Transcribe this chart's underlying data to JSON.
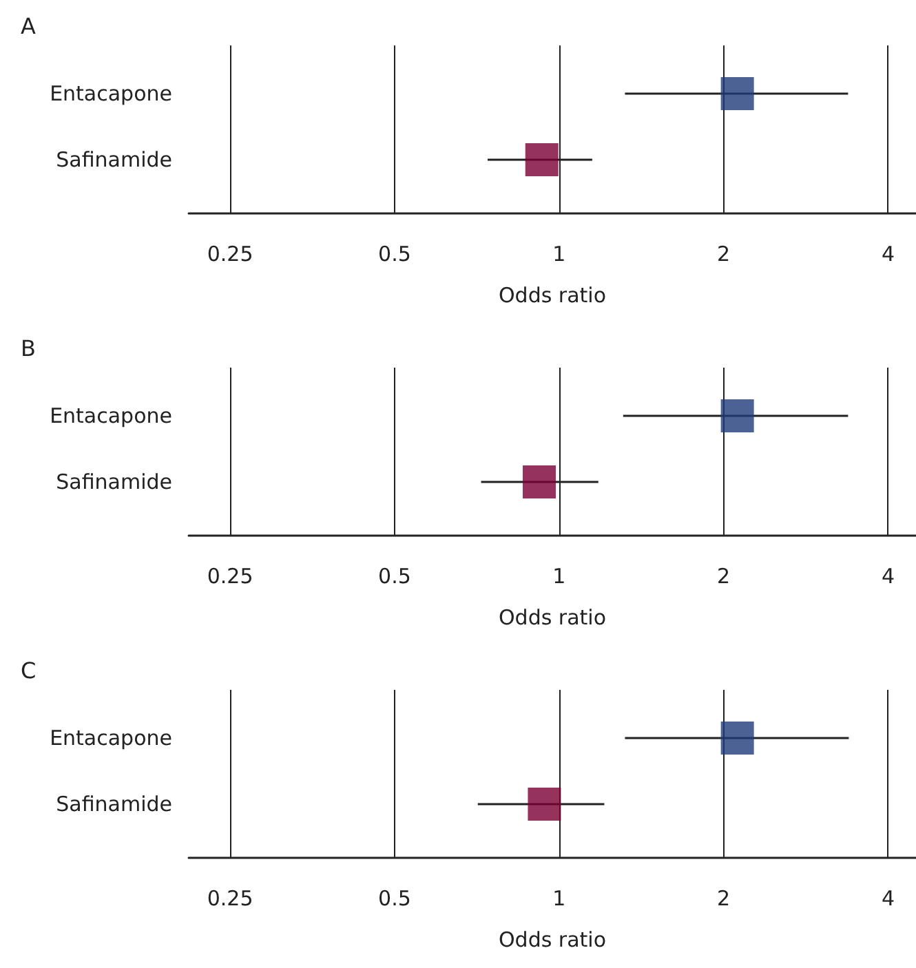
{
  "chart_data": [
    {
      "type": "scatter",
      "title": "A",
      "xlabel": "Odds ratio",
      "orientation": "horizontal",
      "log": "x",
      "grid": "x",
      "marker": "square",
      "categories": [
        "Entacapone",
        "Safinamide"
      ],
      "xlim": [
        0.21,
        4.5
      ],
      "xticks": [
        0.25,
        0.5,
        1,
        2,
        4
      ],
      "series": [
        {
          "values": [
            2.12,
            0.93
          ],
          "colors": [
            "#1f3b7b",
            "#7a0034"
          ],
          "errors": [
            [
              1.32,
              3.38
            ],
            [
              0.74,
              1.15
            ]
          ]
        }
      ]
    },
    {
      "type": "scatter",
      "title": "B",
      "xlabel": "Odds ratio",
      "orientation": "horizontal",
      "log": "x",
      "grid": "x",
      "marker": "square",
      "categories": [
        "Entacapone",
        "Safinamide"
      ],
      "xlim": [
        0.21,
        4.5
      ],
      "xticks": [
        0.25,
        0.5,
        1,
        2,
        4
      ],
      "series": [
        {
          "values": [
            2.12,
            0.92
          ],
          "colors": [
            "#1f3b7b",
            "#7a0034"
          ],
          "errors": [
            [
              1.31,
              3.38
            ],
            [
              0.72,
              1.18
            ]
          ]
        }
      ]
    },
    {
      "type": "scatter",
      "title": "C",
      "xlabel": "Odds ratio",
      "orientation": "horizontal",
      "log": "x",
      "grid": "x",
      "marker": "square",
      "categories": [
        "Entacapone",
        "Safinamide"
      ],
      "xlim": [
        0.21,
        4.5
      ],
      "xticks": [
        0.25,
        0.5,
        1,
        2,
        4
      ],
      "series": [
        {
          "values": [
            2.12,
            0.94
          ],
          "colors": [
            "#1f3b7b",
            "#7a0034"
          ],
          "errors": [
            [
              1.32,
              3.39
            ],
            [
              0.71,
              1.21
            ]
          ]
        }
      ]
    }
  ]
}
